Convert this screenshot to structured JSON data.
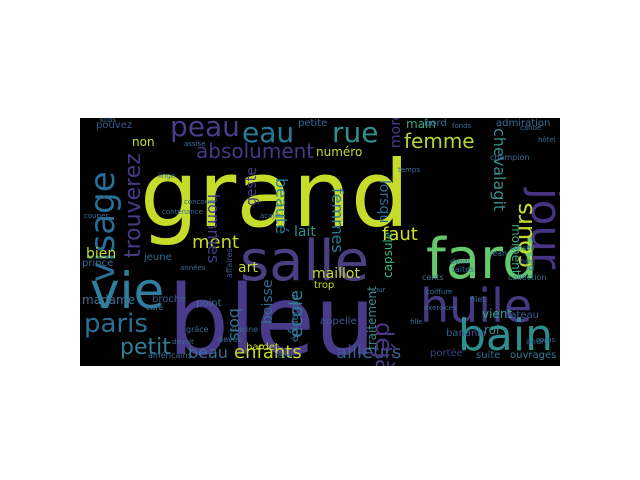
{
  "figure": {
    "background": "#000000",
    "palette": "viridis"
  },
  "words": [
    {
      "id": "grand",
      "text": "grand",
      "color": "#c6dc2b"
    },
    {
      "id": "bleu",
      "text": "bleu",
      "color": "#4a3a8a"
    },
    {
      "id": "fard",
      "text": "fard",
      "color": "#63c96a"
    },
    {
      "id": "salle",
      "text": "salle",
      "color": "#4b3f84"
    },
    {
      "id": "vie",
      "text": "vie",
      "color": "#2f7fa0"
    },
    {
      "id": "huile",
      "text": "huile",
      "color": "#453984"
    },
    {
      "id": "jour",
      "text": "jour",
      "color": "#473485"
    },
    {
      "id": "bain",
      "text": "bain",
      "color": "#2d8e8e"
    },
    {
      "id": "paris",
      "text": "paris",
      "color": "#2c6f96"
    },
    {
      "id": "visage",
      "text": "visage",
      "color": "#2a6e95"
    },
    {
      "id": "peau",
      "text": "peau",
      "color": "#4a3c86"
    },
    {
      "id": "eau",
      "text": "eau",
      "color": "#2a7b96"
    },
    {
      "id": "rue",
      "text": "rue",
      "color": "#2f8e8e"
    },
    {
      "id": "femme",
      "text": "femme",
      "color": "#b4d437"
    },
    {
      "id": "absolument",
      "text": "absolument",
      "color": "#433985"
    },
    {
      "id": "cours",
      "text": "cours",
      "color": "#c4da2c"
    },
    {
      "id": "chevalagit",
      "text": "chevalagit",
      "color": "#3a8b8c"
    },
    {
      "id": "trouverez",
      "text": "trouverez",
      "color": "#463a86"
    },
    {
      "id": "petit",
      "text": "petit",
      "color": "#2f7e93"
    },
    {
      "id": "ment",
      "text": "ment",
      "color": "#c5db2b"
    },
    {
      "id": "enfants",
      "text": "enfants",
      "color": "#c5db2b"
    },
    {
      "id": "ailleurs",
      "text": "ailleurs",
      "color": "#3a5b94"
    },
    {
      "id": "beau",
      "text": "beau",
      "color": "#3a6e96"
    },
    {
      "id": "bien",
      "text": "bien",
      "color": "#c8dc2b"
    },
    {
      "id": "faut",
      "text": "faut",
      "color": "#d2e02a"
    },
    {
      "id": "hommes",
      "text": "hommes",
      "color": "#3f3d86"
    },
    {
      "id": "beaute",
      "text": "beauté",
      "color": "#2a7e93"
    },
    {
      "id": "geste",
      "text": "geste",
      "color": "#473983"
    },
    {
      "id": "femmes",
      "text": "femmes",
      "color": "#2a7695"
    },
    {
      "id": "lorsqu",
      "text": "lorsqu",
      "color": "#2a6e95"
    },
    {
      "id": "morceaux",
      "text": "morceaux",
      "color": "#4e3b88"
    },
    {
      "id": "deja",
      "text": "déjà",
      "color": "#4a3883"
    },
    {
      "id": "ecole",
      "text": "école",
      "color": "#2f7e93"
    },
    {
      "id": "bois",
      "text": "bois",
      "color": "#2a7695"
    },
    {
      "id": "art",
      "text": "art",
      "color": "#c6db2b"
    },
    {
      "id": "boisse",
      "text": "boisse",
      "color": "#2f6e95"
    },
    {
      "id": "lait",
      "text": "lait",
      "color": "#30928b"
    },
    {
      "id": "maillot",
      "text": "maillot",
      "color": "#c6db2b"
    },
    {
      "id": "numero",
      "text": "numéro",
      "color": "#c6db2b"
    },
    {
      "id": "capsule",
      "text": "capsule",
      "color": "#37b67d"
    },
    {
      "id": "main",
      "text": "main",
      "color": "#38a983"
    },
    {
      "id": "moment",
      "text": "moment",
      "color": "#3ca884"
    },
    {
      "id": "vient",
      "text": "vient",
      "color": "#32a385"
    },
    {
      "id": "non",
      "text": "non",
      "color": "#c6db2b"
    },
    {
      "id": "madame",
      "text": "madame",
      "color": "#40708f"
    },
    {
      "id": "jeune",
      "text": "jeune",
      "color": "#2f6e95"
    },
    {
      "id": "prince",
      "text": "prince",
      "color": "#2f6e95"
    },
    {
      "id": "pouvez",
      "text": "pouvez",
      "color": "#3c5891"
    },
    {
      "id": "roi",
      "text": "roi",
      "color": "#3a8b8c"
    },
    {
      "id": "suite",
      "text": "suite",
      "color": "#2f6e95"
    },
    {
      "id": "ouvrages",
      "text": "ouvrages",
      "color": "#2f7e93"
    },
    {
      "id": "traitement",
      "text": "traitement",
      "color": "#3c8b8c"
    },
    {
      "id": "appelle",
      "text": "appelle",
      "color": "#3f5990"
    },
    {
      "id": "epiderme",
      "text": "épiderme",
      "color": "#2f6e95"
    },
    {
      "id": "portee",
      "text": "portée",
      "color": "#3a3e86"
    },
    {
      "id": "banania",
      "text": "banania",
      "color": "#3a5a93"
    },
    {
      "id": "bateau",
      "text": "bateau",
      "color": "#3a5a93"
    },
    {
      "id": "broche",
      "text": "broche",
      "color": "#3f5990"
    },
    {
      "id": "bardet",
      "text": "bardet",
      "color": "#c6db2b"
    },
    {
      "id": "trop",
      "text": "trop",
      "color": "#c6db2b"
    },
    {
      "id": "point",
      "text": "point",
      "color": "#3a6e96"
    },
    {
      "id": "affaires",
      "text": "affaires",
      "color": "#3a5a93"
    },
    {
      "id": "petite",
      "text": "petite",
      "color": "#3a6e96"
    },
    {
      "id": "bord",
      "text": "bord",
      "color": "#3a6e96"
    },
    {
      "id": "admiration",
      "text": "admiration",
      "color": "#3a6e96"
    },
    {
      "id": "devez",
      "text": "devez",
      "color": "#3a6e96"
    },
    {
      "id": "grace",
      "text": "grâce",
      "color": "#3a6e96"
    },
    {
      "id": "cafe",
      "text": "café",
      "color": "#3a6e96"
    },
    {
      "id": "cuisine",
      "text": "cuisine",
      "color": "#3a6e96"
    },
    {
      "id": "filet",
      "text": "filet",
      "color": "#3a6e96"
    },
    {
      "id": "collection",
      "text": "collection",
      "color": "#3a6e96"
    },
    {
      "id": "bon",
      "text": "bon",
      "color": "#3a6e96"
    },
    {
      "id": "ici",
      "text": "ici",
      "color": "#3a6e96"
    },
    {
      "id": "andre",
      "text": "andré",
      "color": "#3a6e96"
    },
    {
      "id": "jean",
      "text": "jean",
      "color": "#3a6e96"
    },
    {
      "id": "cents",
      "text": "cents",
      "color": "#3a6e96"
    },
    {
      "id": "faites",
      "text": "faites",
      "color": "#3a6e96"
    },
    {
      "id": "demi",
      "text": "demi",
      "color": "#3a6e96"
    },
    {
      "id": "champion",
      "text": "champion",
      "color": "#3a6e96"
    },
    {
      "id": "americains",
      "text": "américains",
      "color": "#3a6e96"
    },
    {
      "id": "kilos",
      "text": "kilos",
      "color": "#3a6e96"
    },
    {
      "id": "temps",
      "text": "temps",
      "color": "#3a6e96"
    },
    {
      "id": "hotel",
      "text": "hôtel",
      "color": "#3a6e96"
    },
    {
      "id": "canoe",
      "text": "canoë",
      "color": "#3a6e96"
    },
    {
      "id": "fonds",
      "text": "fonds",
      "color": "#3a6e96"
    },
    {
      "id": "coiffure",
      "text": "coiffure",
      "color": "#3a6e96"
    },
    {
      "id": "exercices",
      "text": "exercices",
      "color": "#3a6e96"
    },
    {
      "id": "conseil",
      "text": "conseil",
      "color": "#3a6e96"
    },
    {
      "id": "fille",
      "text": "fille",
      "color": "#3a6e96"
    },
    {
      "id": "corps",
      "text": "corps",
      "color": "#3a6e96"
    },
    {
      "id": "contenance",
      "text": "contenance",
      "color": "#3a6e96"
    },
    {
      "id": "assise",
      "text": "assise",
      "color": "#3a6e96"
    },
    {
      "id": "acajou",
      "text": "acajou",
      "color": "#3a6e96"
    },
    {
      "id": "linge",
      "text": "linge",
      "color": "#3a6e96"
    },
    {
      "id": "couper",
      "text": "couper",
      "color": "#3a6e96"
    },
    {
      "id": "annees",
      "text": "années",
      "color": "#3a6e96"
    },
    {
      "id": "devoit",
      "text": "devoit",
      "color": "#3a6e96"
    },
    {
      "id": "concours",
      "text": "concours",
      "color": "#3a6e96"
    },
    {
      "id": "lever",
      "text": "lever",
      "color": "#3a6e96"
    },
    {
      "id": "jour2",
      "text": "jour",
      "color": "#3a6e96"
    }
  ]
}
